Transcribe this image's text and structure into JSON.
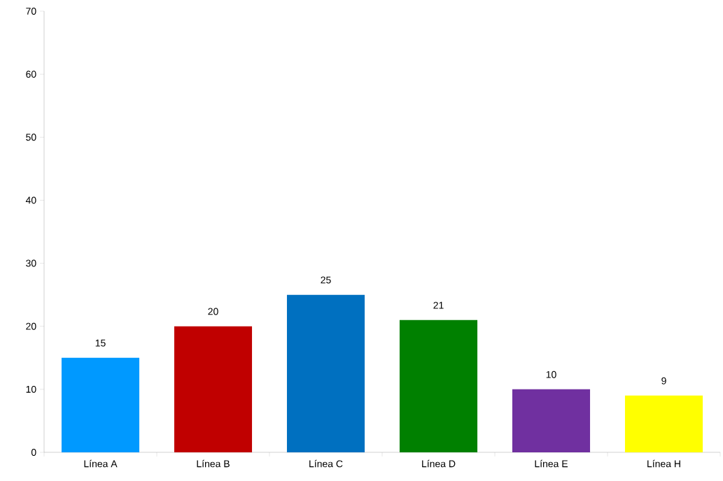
{
  "chart_data": {
    "type": "bar",
    "categories": [
      "Línea A",
      "Línea B",
      "Línea C",
      "Línea D",
      "Línea E",
      "Línea H"
    ],
    "values": [
      15,
      20,
      25,
      21,
      10,
      9
    ],
    "colors": [
      "#0099ff",
      "#c00000",
      "#0070c0",
      "#008000",
      "#7030a0",
      "#ffff00"
    ],
    "ylim": [
      0,
      70
    ],
    "yticks": [
      0,
      10,
      20,
      30,
      40,
      50,
      60,
      70
    ],
    "data_labels": true
  }
}
